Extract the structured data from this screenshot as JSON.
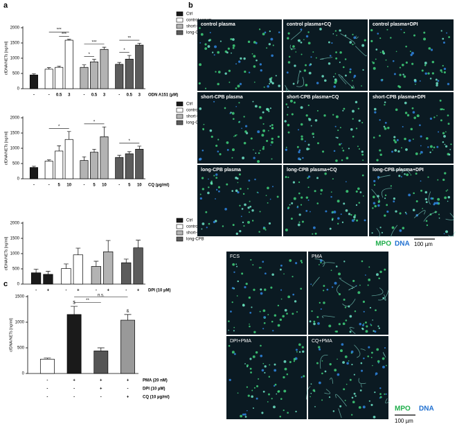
{
  "panel_labels": [
    "a",
    "b",
    "c"
  ],
  "chart_data": [
    {
      "type": "bar",
      "y_label": "cfDNA/NETs [ng/ml]",
      "x_label": "ODN A151 (µM)",
      "categories": [
        "-",
        "-",
        "0.5",
        "3",
        "-",
        "0.5",
        "3",
        "-",
        "0.5",
        "3"
      ],
      "values": [
        450,
        640,
        700,
        1590,
        700,
        880,
        1290,
        800,
        970,
        1430
      ],
      "errors": [
        40,
        50,
        40,
        30,
        80,
        80,
        70,
        60,
        120,
        60
      ],
      "bar_colors": [
        "#1a1a1a",
        "#ffffff",
        "#ffffff",
        "#ffffff",
        "#b3b3b3",
        "#b3b3b3",
        "#b3b3b3",
        "#5c5c5c",
        "#5c5c5c",
        "#5c5c5c"
      ],
      "legend": [
        {
          "name": "Ctrl",
          "color": "#1a1a1a"
        },
        {
          "name": "control serum",
          "color": "#ffffff"
        },
        {
          "name": "short-CPB",
          "color": "#b3b3b3"
        },
        {
          "name": "long-CPB",
          "color": "#5c5c5c"
        }
      ],
      "annotations": [
        {
          "text": "***",
          "from": 2,
          "to": 3
        },
        {
          "text": "***",
          "from": 1,
          "to": 3
        },
        {
          "text": "*",
          "from": 4,
          "to": 5
        },
        {
          "text": "***",
          "from": 4,
          "to": 6
        },
        {
          "text": "*",
          "from": 7,
          "to": 8
        },
        {
          "text": "**",
          "from": 7,
          "to": 9
        }
      ],
      "ylim": [
        0,
        2000
      ],
      "yticks": [
        0,
        500,
        1000,
        1500,
        2000
      ]
    },
    {
      "type": "bar",
      "y_label": "cfDNA/NETs [ng/ml]",
      "x_label": "CQ (µg/ml)",
      "categories": [
        "-",
        "-",
        "5",
        "10",
        "-",
        "5",
        "10",
        "-",
        "5",
        "10"
      ],
      "values": [
        370,
        580,
        910,
        1290,
        600,
        870,
        1380,
        700,
        820,
        970
      ],
      "errors": [
        40,
        40,
        170,
        260,
        120,
        100,
        320,
        70,
        70,
        100
      ],
      "bar_colors": [
        "#1a1a1a",
        "#ffffff",
        "#ffffff",
        "#ffffff",
        "#b3b3b3",
        "#b3b3b3",
        "#b3b3b3",
        "#5c5c5c",
        "#5c5c5c",
        "#5c5c5c"
      ],
      "legend": [
        {
          "name": "Ctrl",
          "color": "#1a1a1a"
        },
        {
          "name": "control serum",
          "color": "#ffffff"
        },
        {
          "name": "short-CPB",
          "color": "#b3b3b3"
        },
        {
          "name": "long-CPB",
          "color": "#5c5c5c"
        }
      ],
      "annotations": [
        {
          "text": "*",
          "from": 1,
          "to": 3
        },
        {
          "text": "*",
          "from": 4,
          "to": 6
        },
        {
          "text": "*",
          "from": 7,
          "to": 9
        }
      ],
      "ylim": [
        0,
        2000
      ],
      "yticks": [
        0,
        500,
        1000,
        1500,
        2000
      ]
    },
    {
      "type": "bar",
      "y_label": "cfDNA/NETs [ng/ml]",
      "x_label": "DPI (10 µM)",
      "categories": [
        "-",
        "+",
        "-",
        "+",
        "-",
        "+",
        "-",
        "+"
      ],
      "values": [
        370,
        320,
        510,
        960,
        580,
        1060,
        700,
        1190
      ],
      "errors": [
        120,
        100,
        150,
        220,
        170,
        370,
        120,
        250
      ],
      "bar_colors": [
        "#1a1a1a",
        "#1a1a1a",
        "#ffffff",
        "#ffffff",
        "#b3b3b3",
        "#b3b3b3",
        "#5c5c5c",
        "#5c5c5c"
      ],
      "legend": [
        {
          "name": "Ctrl",
          "color": "#1a1a1a"
        },
        {
          "name": "control serum",
          "color": "#ffffff"
        },
        {
          "name": "short-CPB",
          "color": "#b3b3b3"
        },
        {
          "name": "long-CPB",
          "color": "#5c5c5c"
        }
      ],
      "annotations": [],
      "ylim": [
        0,
        2000
      ],
      "yticks": [
        0,
        500,
        1000,
        1500,
        2000
      ]
    },
    {
      "type": "bar",
      "y_label": "cfDNA/NETs [ng/ml]",
      "values": [
        280,
        1150,
        440,
        1040
      ],
      "errors": [
        20,
        160,
        60,
        110
      ],
      "bar_colors": [
        "#ffffff",
        "#1a1a1a",
        "#555555",
        "#999999"
      ],
      "conditions": [
        {
          "label": "PMA (20 nM)",
          "values": [
            "-",
            "+",
            "+",
            "+"
          ]
        },
        {
          "label": "DPI (10 µM)",
          "values": [
            "-",
            "-",
            "+",
            "-"
          ]
        },
        {
          "label": "CQ (10 µg/ml)",
          "values": [
            "-",
            "-",
            "-",
            "+"
          ]
        }
      ],
      "annotations": [
        {
          "text": "$",
          "at": 1
        },
        {
          "text": "&",
          "at": 3
        },
        {
          "text": "**",
          "from": 1,
          "to": 2
        },
        {
          "text": "n.s.",
          "from": 1,
          "to": 3
        }
      ],
      "ylim": [
        0,
        1500
      ],
      "yticks": [
        0,
        500,
        1000,
        1500
      ]
    }
  ],
  "images_b": {
    "captions": [
      "control plasma",
      "control plasma+CQ",
      "control plasma+DPI",
      "short-CPB plasma",
      "short-CPB plasma+CQ",
      "short-CPB plasma+DPI",
      "long-CPB plasma",
      "long-CPB plasma+CQ",
      "long-CPB plasma+DPI"
    ],
    "mpo": "MPO",
    "dna": "DNA",
    "scale": "100 µm"
  },
  "images_c": {
    "captions": [
      "FCS",
      "PMA",
      "DPI+PMA",
      "CQ+PMA"
    ],
    "mpo": "MPO",
    "dna": "DNA",
    "scale": "100 µm"
  }
}
